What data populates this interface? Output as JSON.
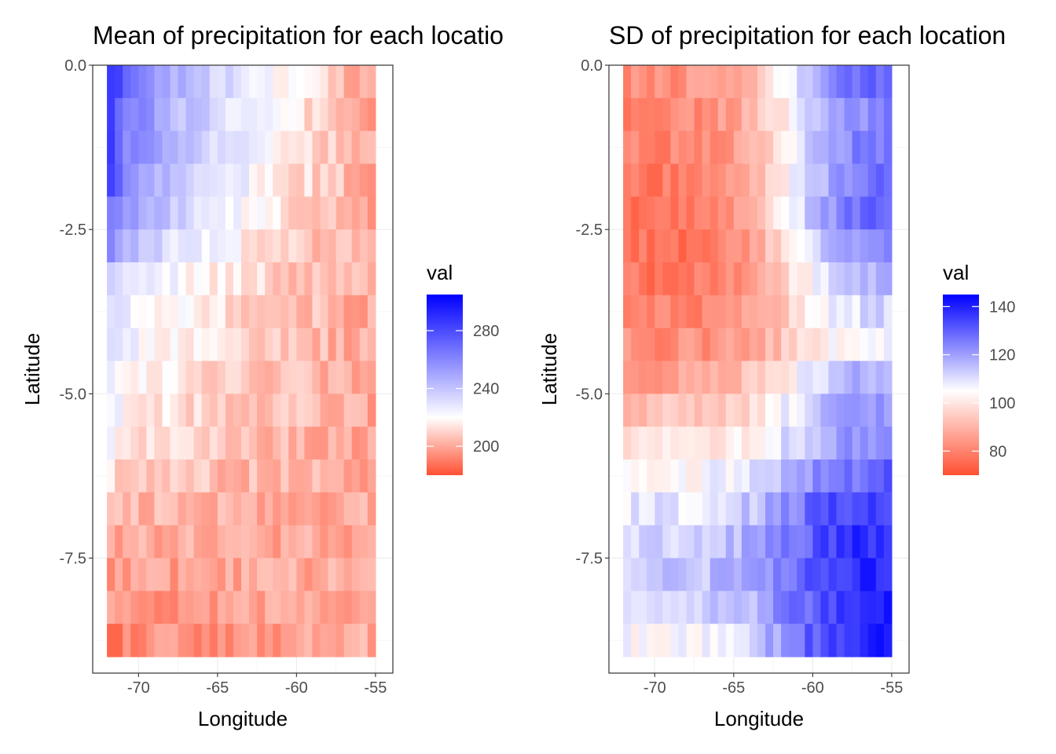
{
  "chart_data": [
    {
      "type": "heatmap",
      "title": "Mean of precipitation for each locatio",
      "xlabel": "Longitude",
      "ylabel": "Latitude",
      "x_ticks": [
        -70,
        -65,
        -60,
        -55
      ],
      "y_ticks": [
        0.0,
        -2.5,
        -5.0,
        -7.5
      ],
      "x_tick_labels": [
        "-70",
        "-65",
        "-60",
        "-55"
      ],
      "y_tick_labels": [
        "0.0",
        "-2.5",
        "-5.0",
        "-7.5"
      ],
      "xlim": [
        -72.9,
        -53.9
      ],
      "ylim": [
        -9.25,
        0.0
      ],
      "lon_min": -72,
      "lon_max": -55,
      "lat_top": 0.0,
      "lat_bottom": -9.0,
      "grid": true,
      "legend": {
        "title": "val",
        "position": "right",
        "ticks": [
          280,
          240,
          200
        ],
        "tick_labels": [
          "280",
          "240",
          "200"
        ],
        "min": 180,
        "max": 305,
        "low_color": "#ff5032",
        "mid_color": "#ffffff",
        "high_color": "#0000ff",
        "mid_value": 220
      },
      "row_profile": [
        290,
        282,
        280,
        278,
        268,
        255,
        243,
        235,
        233,
        228,
        225,
        220,
        212,
        205,
        200,
        198,
        195,
        190
      ],
      "east_value": 200,
      "col_decay": 0.55
    },
    {
      "type": "heatmap",
      "title": "SD of precipitation for each location",
      "xlabel": "Longitude",
      "ylabel": "Latitude",
      "x_ticks": [
        -70,
        -65,
        -60,
        -55
      ],
      "y_ticks": [
        0.0,
        -2.5,
        -5.0,
        -7.5
      ],
      "x_tick_labels": [
        "-70",
        "-65",
        "-60",
        "-55"
      ],
      "y_tick_labels": [
        "0.0",
        "-2.5",
        "-5.0",
        "-7.5"
      ],
      "xlim": [
        -72.9,
        -53.9
      ],
      "ylim": [
        -9.25,
        0.0
      ],
      "lon_min": -72,
      "lon_max": -55,
      "lat_top": 0.0,
      "lat_bottom": -9.0,
      "grid": true,
      "legend": {
        "title": "val",
        "position": "right",
        "ticks": [
          140,
          120,
          100,
          80
        ],
        "tick_labels": [
          "140",
          "120",
          "100",
          "80"
        ],
        "min": 70,
        "max": 145,
        "low_color": "#ff5032",
        "mid_color": "#ffffff",
        "high_color": "#0000ff",
        "mid_value": 105
      },
      "west_row_profile": [
        82,
        80,
        80,
        78,
        77,
        76,
        77,
        80,
        82,
        86,
        92,
        98,
        104,
        108,
        112,
        113,
        110,
        105
      ],
      "east_row_profile": [
        130,
        125,
        128,
        130,
        133,
        128,
        118,
        112,
        108,
        120,
        122,
        123,
        130,
        137,
        140,
        140,
        140,
        142
      ]
    }
  ]
}
